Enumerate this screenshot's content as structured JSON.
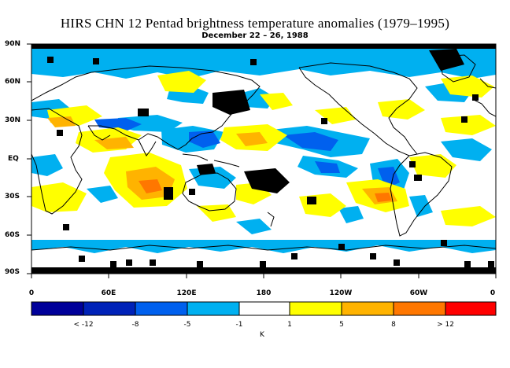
{
  "title": "HIRS CHN 12 Pentad brightness temperature anomalies (1979–1995)",
  "subtitle": "December 22 – 26, 1988",
  "lat_labels": [
    "90N",
    "60N",
    "30N",
    "EQ",
    "30S",
    "60S",
    "90S"
  ],
  "lon_labels": [
    "0",
    "60E",
    "120E",
    "180",
    "120W",
    "60W",
    "0"
  ],
  "colorbar": {
    "colors": [
      "#00009a",
      "#0022b8",
      "#0060ee",
      "#00b0f0",
      "#ffffff",
      "#ffff00",
      "#ffb300",
      "#ff7700",
      "#ff0000"
    ],
    "labels": [
      "< -12",
      "-8",
      "-5",
      "-1",
      "1",
      "5",
      "8",
      "> 12"
    ],
    "unit": "K"
  },
  "missing_color": "#000000",
  "coast_color": "#000000"
}
